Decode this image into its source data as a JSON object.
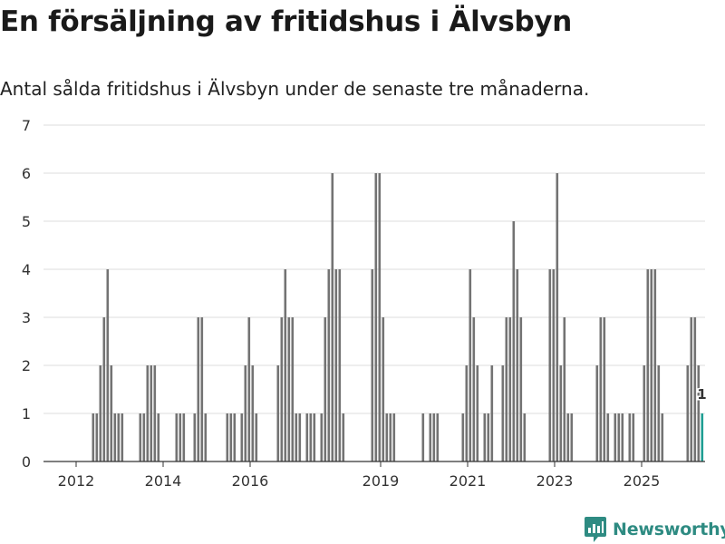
{
  "title": "En försäljning av fritidshus i Älvsbyn",
  "subtitle": "Antal sålda fritidshus i Älvsbyn under de senaste tre månaderna.",
  "brand": {
    "name": "Newsworthy",
    "icon": "newsworthy-logo-icon",
    "color": "#2e8b82"
  },
  "colors": {
    "bar": "#737373",
    "highlight": "#1f9e93",
    "grid": "#dddddd",
    "axis": "#333333"
  },
  "chart_data": {
    "type": "bar",
    "title": "",
    "xlabel": "",
    "ylabel": "",
    "ylim": [
      0,
      7
    ],
    "yticks": [
      0,
      1,
      2,
      3,
      4,
      5,
      6,
      7
    ],
    "xticks": [
      "2012",
      "2014",
      "2016",
      "2019",
      "2021",
      "2023",
      "2025"
    ],
    "grid": true,
    "highlight_label": "1",
    "values": [
      0,
      0,
      0,
      0,
      0,
      0,
      0,
      0,
      0,
      0,
      0,
      0,
      0,
      0,
      0,
      0,
      0,
      0,
      0,
      0,
      0,
      0,
      0,
      0,
      0,
      0,
      1,
      1,
      2,
      3,
      4,
      2,
      1,
      1,
      1,
      0,
      0,
      0,
      0,
      1,
      1,
      2,
      2,
      2,
      1,
      0,
      0,
      0,
      0,
      1,
      1,
      1,
      0,
      0,
      1,
      3,
      3,
      1,
      0,
      0,
      0,
      0,
      0,
      1,
      1,
      1,
      0,
      1,
      2,
      3,
      2,
      1,
      0,
      0,
      0,
      0,
      0,
      2,
      3,
      4,
      3,
      3,
      1,
      1,
      0,
      1,
      1,
      1,
      0,
      1,
      3,
      4,
      6,
      4,
      4,
      1,
      0,
      0,
      0,
      0,
      0,
      0,
      0,
      4,
      6,
      6,
      3,
      1,
      1,
      1,
      0,
      0,
      0,
      0,
      0,
      0,
      0,
      1,
      0,
      1,
      1,
      1,
      0,
      0,
      0,
      0,
      0,
      0,
      1,
      2,
      4,
      3,
      2,
      0,
      1,
      1,
      2,
      0,
      0,
      2,
      3,
      3,
      5,
      4,
      3,
      1,
      0,
      0,
      0,
      0,
      0,
      0,
      4,
      4,
      6,
      2,
      3,
      1,
      1,
      0,
      0,
      0,
      0,
      0,
      0,
      2,
      3,
      3,
      1,
      0,
      1,
      1,
      1,
      0,
      1,
      1,
      0,
      0,
      2,
      4,
      4,
      4,
      2,
      1,
      0,
      0,
      0,
      0,
      0,
      0,
      2,
      3,
      3,
      2,
      1
    ]
  }
}
